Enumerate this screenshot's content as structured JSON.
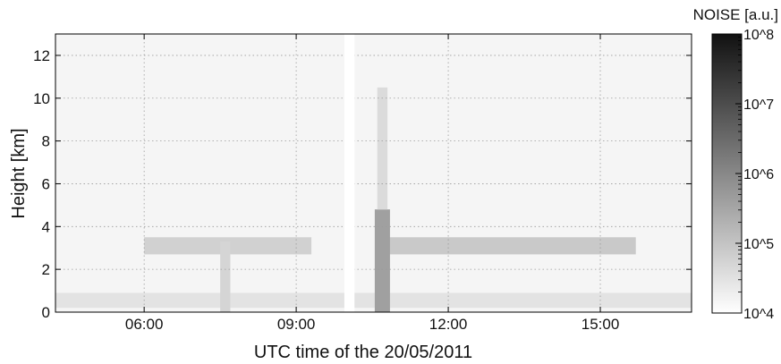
{
  "chart_data": {
    "type": "heatmap",
    "title": "",
    "xlabel": "UTC time of the 20/05/2011",
    "ylabel": "Height [km]",
    "x_range_hours": [
      4.25,
      16.8
    ],
    "y_range_km": [
      0,
      13
    ],
    "x_ticks": [
      {
        "value": 6,
        "label": "06:00"
      },
      {
        "value": 9,
        "label": "09:00"
      },
      {
        "value": 12,
        "label": "12:00"
      },
      {
        "value": 15,
        "label": "15:00"
      }
    ],
    "y_ticks": [
      {
        "value": 0,
        "label": "0"
      },
      {
        "value": 2,
        "label": "2"
      },
      {
        "value": 4,
        "label": "4"
      },
      {
        "value": 6,
        "label": "6"
      },
      {
        "value": 8,
        "label": "8"
      },
      {
        "value": 10,
        "label": "10"
      },
      {
        "value": 12,
        "label": "12"
      }
    ],
    "grid": true,
    "data_gap_hours": [
      9.95,
      10.15
    ],
    "colorbar": {
      "title": "NOISE [a.u.]",
      "scale": "log",
      "range": [
        10000,
        100000000
      ],
      "ticks": [
        {
          "value": 10000,
          "label": "10^4"
        },
        {
          "value": 100000,
          "label": "10^5"
        },
        {
          "value": 1000000,
          "label": "10^6"
        },
        {
          "value": 10000000,
          "label": "10^7"
        },
        {
          "value": 100000000,
          "label": "10^8"
        }
      ],
      "colors": [
        "#ffffff",
        "#111111"
      ]
    },
    "background_level": 15000,
    "features": [
      {
        "t_start": 6.0,
        "t_end": 9.3,
        "h_start": 2.7,
        "h_end": 3.5,
        "level": 60000
      },
      {
        "t_start": 10.75,
        "t_end": 15.7,
        "h_start": 2.7,
        "h_end": 3.5,
        "level": 80000
      },
      {
        "t_start": 4.25,
        "t_end": 16.8,
        "h_start": 0.2,
        "h_end": 0.9,
        "level": 30000
      },
      {
        "t_start": 7.5,
        "t_end": 7.7,
        "h_start": 0.0,
        "h_end": 3.3,
        "level": 50000
      },
      {
        "t_start": 10.55,
        "t_end": 10.85,
        "h_start": 0.0,
        "h_end": 4.8,
        "level": 400000
      },
      {
        "t_start": 10.6,
        "t_end": 10.8,
        "h_start": 4.8,
        "h_end": 10.5,
        "level": 40000
      }
    ]
  }
}
